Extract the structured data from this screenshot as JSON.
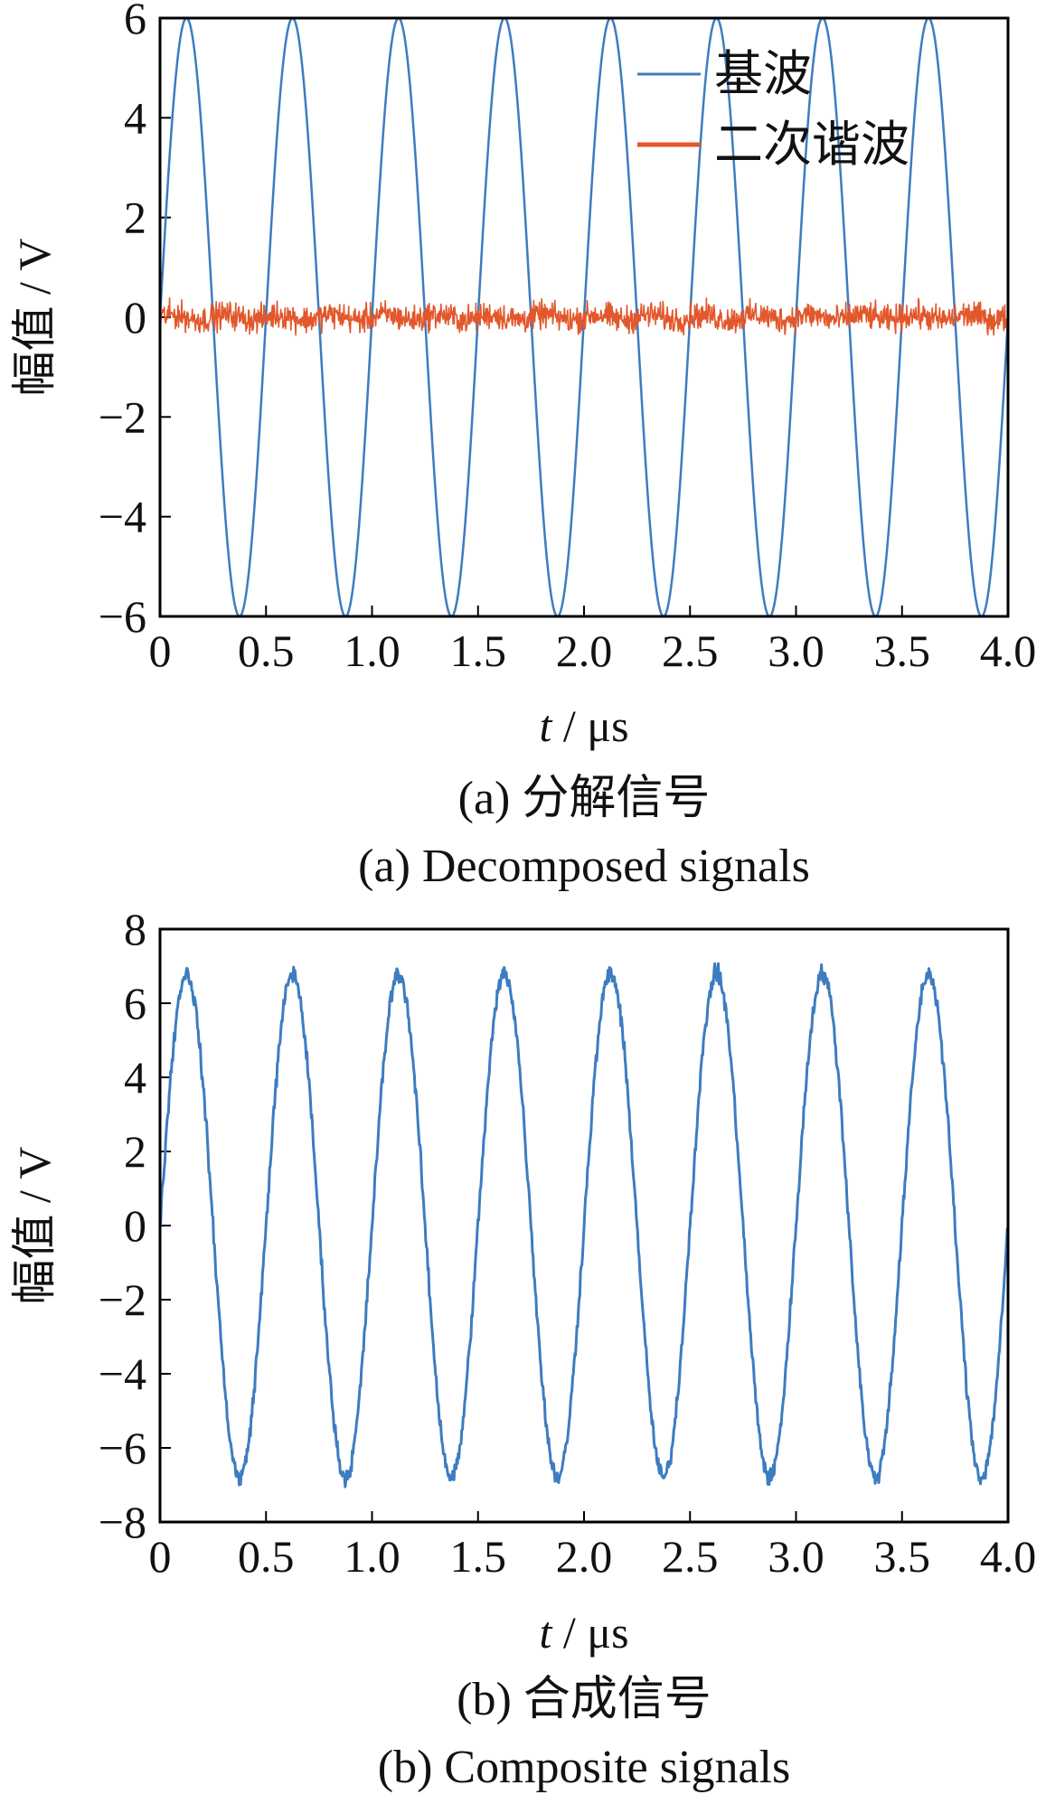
{
  "charts": [
    {
      "id": "a",
      "ylabel": "幅值 / V",
      "xlabel_italic": "t",
      "xlabel_rest": " / μs",
      "xticks": [
        "0",
        "0.5",
        "1.0",
        "1.5",
        "2.0",
        "2.5",
        "3.0",
        "3.5",
        "4.0"
      ],
      "yticks": [
        "6",
        "4",
        "2",
        "0",
        "−2",
        "−4",
        "−6"
      ],
      "caption_cn": "(a)  分解信号",
      "caption_en": "(a)  Decomposed signals",
      "legend": [
        "基波",
        "二次谐波"
      ]
    },
    {
      "id": "b",
      "ylabel": "幅值 / V",
      "xlabel_italic": "t",
      "xlabel_rest": " / μs",
      "xticks": [
        "0",
        "0.5",
        "1.0",
        "1.5",
        "2.0",
        "2.5",
        "3.0",
        "3.5",
        "4.0"
      ],
      "yticks": [
        "8",
        "6",
        "4",
        "2",
        "0",
        "−2",
        "−4",
        "−6",
        "−8"
      ],
      "caption_cn": "(b)  合成信号",
      "caption_en": "(b)  Composite signals",
      "legend": []
    }
  ],
  "chart_data": [
    {
      "type": "line",
      "xlim": [
        0,
        4.0
      ],
      "ylim": [
        -6,
        6
      ],
      "xticks": [
        0,
        0.5,
        1.0,
        1.5,
        2.0,
        2.5,
        3.0,
        3.5,
        4.0
      ],
      "yticks": [
        6,
        4,
        2,
        0,
        -2,
        -4,
        -6
      ],
      "legend_position": "top-right",
      "series": [
        {
          "name": "基波",
          "color": "#3d7cc0",
          "kind": "sine",
          "amplitude": 6,
          "frequency_mhz": 2,
          "noise_amplitude": 0
        },
        {
          "name": "二次谐波",
          "color": "#e2572b",
          "kind": "noise",
          "amplitude": 0,
          "frequency_mhz": 4,
          "noise_amplitude": 0.4
        }
      ]
    },
    {
      "type": "line",
      "xlim": [
        0,
        4.0
      ],
      "ylim": [
        -8,
        8
      ],
      "xticks": [
        0,
        0.5,
        1.0,
        1.5,
        2.0,
        2.5,
        3.0,
        3.5,
        4.0
      ],
      "yticks": [
        8,
        6,
        4,
        2,
        0,
        -2,
        -4,
        -6,
        -8
      ],
      "series": [
        {
          "color": "#3d7cc0",
          "kind": "sine",
          "amplitude": 6.8,
          "frequency_mhz": 2,
          "noise_amplitude": 0.35
        }
      ]
    }
  ]
}
